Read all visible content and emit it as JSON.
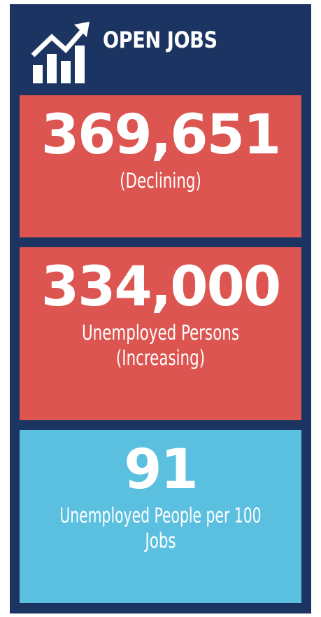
{
  "header": {
    "title": "OPEN JOBS"
  },
  "cards": [
    {
      "value": "369,651",
      "caption": [
        "(Declining)"
      ]
    },
    {
      "value": "334,000",
      "caption": [
        "Unemployed Persons",
        "(Increasing)"
      ]
    },
    {
      "value": "91",
      "caption": [
        "Unemployed People per 100",
        "Jobs"
      ]
    }
  ]
}
